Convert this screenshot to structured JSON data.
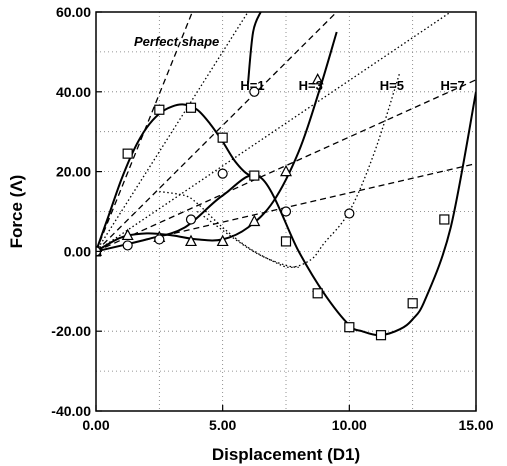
{
  "chart_data": {
    "type": "line",
    "xlabel": "Displacement (D1)",
    "ylabel": "Force (Λ)",
    "xlim": [
      0,
      15
    ],
    "ylim": [
      -40,
      60
    ],
    "x_ticks": [
      0,
      5,
      10,
      15
    ],
    "x_tick_labels": [
      "0.00",
      "5.00",
      "10.00",
      "15.00"
    ],
    "y_ticks": [
      -40,
      -20,
      0,
      20,
      40,
      60
    ],
    "y_tick_labels": [
      "-40.00",
      "-20.00",
      "0.00",
      "20.00",
      "40.00",
      "60.00"
    ],
    "grid": true,
    "legend": "none",
    "annotations": [
      {
        "text": "Perfect shape",
        "x": 1.5,
        "y": 51.5,
        "italic": true
      },
      {
        "text": "H=1",
        "x": 5.7,
        "y": 40.5
      },
      {
        "text": "H=3",
        "x": 8.0,
        "y": 40.5
      },
      {
        "text": "H=5",
        "x": 11.2,
        "y": 40.5
      },
      {
        "text": "H=7",
        "x": 13.6,
        "y": 40.5
      }
    ],
    "series": [
      {
        "style": "solid",
        "marker": "none",
        "color": "#000000",
        "x": [
          0,
          0.5,
          1.0,
          1.5,
          2.0,
          2.5,
          3.0,
          3.5,
          4.0,
          4.5,
          5.0,
          5.5,
          6.0,
          6.5
        ],
        "y": [
          0,
          9,
          18,
          25.5,
          31,
          34.5,
          36.3,
          36.8,
          35.5,
          32,
          27.5,
          22.5,
          19.3,
          18.8
        ]
      },
      {
        "style": "solid",
        "marker": "none",
        "color": "#000000",
        "x": [
          0,
          1.0,
          2.0,
          3.0,
          4.0,
          5.0,
          6.0,
          7.0,
          8.0,
          8.8,
          9.5
        ],
        "y": [
          0,
          3.5,
          4.5,
          4.0,
          3.0,
          3.0,
          6.0,
          12.5,
          25.0,
          40.0,
          55.0
        ]
      },
      {
        "style": "solid",
        "marker": "none",
        "color": "#000000",
        "x": [
          0,
          2.0,
          3.5,
          5.0,
          6.5,
          8.0,
          9.0,
          10.0,
          10.5,
          11.2,
          12.0,
          12.5,
          13.0,
          14.0,
          15.0
        ],
        "y": [
          0,
          3.0,
          6.0,
          14.0,
          18.5,
          0,
          -10.5,
          -18.5,
          -20.0,
          -21.0,
          -19.5,
          -17.0,
          -12.0,
          6.0,
          40.0
        ]
      },
      {
        "style": "solid",
        "marker": "none",
        "color": "#000000",
        "x": [
          6.0,
          6.2,
          6.5
        ],
        "y": [
          42.0,
          55.0,
          60.0
        ]
      },
      {
        "style": "dotted",
        "marker": "none",
        "color": "#000000",
        "x": [
          2.5,
          3.5,
          4.0,
          5.0,
          6.0,
          7.0,
          7.7,
          8.5,
          9.0,
          10.0,
          11.0,
          12.0
        ],
        "y": [
          15.0,
          14.0,
          12.0,
          6.0,
          1.0,
          -2.5,
          -4.0,
          -2.0,
          2.0,
          10.0,
          25.0,
          45.0
        ]
      },
      {
        "style": "dotted",
        "marker": "none",
        "color": "#000000",
        "x": [
          4.0,
          5.5,
          6.5,
          7.5,
          8.0
        ],
        "y": [
          10.0,
          3.0,
          -1.0,
          -3.5,
          -4.0
        ]
      },
      {
        "style": "dashed",
        "marker": "none",
        "color": "#000000",
        "x": [
          0,
          3.8
        ],
        "y": [
          0,
          60.0
        ]
      },
      {
        "style": "dashed",
        "marker": "none",
        "color": "#000000",
        "x": [
          0,
          9.5
        ],
        "y": [
          0,
          60.0
        ]
      },
      {
        "style": "dashed",
        "marker": "none",
        "color": "#000000",
        "x": [
          0,
          15.0
        ],
        "y": [
          0,
          43.0
        ]
      },
      {
        "style": "dashed",
        "marker": "none",
        "color": "#000000",
        "x": [
          0,
          15.0
        ],
        "y": [
          0,
          22.0
        ]
      },
      {
        "style": "dotted",
        "marker": "none",
        "color": "#000000",
        "x": [
          0,
          6.0
        ],
        "y": [
          0,
          60.0
        ]
      },
      {
        "style": "dotted",
        "marker": "none",
        "color": "#000000",
        "x": [
          0,
          14.0
        ],
        "y": [
          0,
          60.0
        ]
      },
      {
        "style": "none",
        "marker": "square",
        "color": "#000000",
        "x": [
          0,
          1.25,
          2.5,
          3.75,
          5.0,
          6.25,
          7.5,
          8.75,
          10.0,
          11.25,
          12.5,
          13.75
        ],
        "y": [
          0,
          24.5,
          35.5,
          36.0,
          28.5,
          19.0,
          2.5,
          -10.5,
          -19.0,
          -21.0,
          -13.0,
          8.0
        ]
      },
      {
        "style": "none",
        "marker": "triangle",
        "color": "#000000",
        "x": [
          0,
          1.25,
          2.5,
          3.75,
          5.0,
          6.25,
          7.5,
          8.75
        ],
        "y": [
          0,
          4.0,
          3.5,
          2.5,
          2.5,
          7.5,
          20.0,
          43.0
        ]
      },
      {
        "style": "none",
        "marker": "circle",
        "color": "#000000",
        "x": [
          0,
          1.25,
          2.5,
          3.75,
          5.0,
          6.25,
          7.5,
          10.0
        ],
        "y": [
          0,
          1.5,
          3.0,
          8.0,
          19.5,
          40.0,
          10.0,
          9.5
        ]
      }
    ]
  }
}
